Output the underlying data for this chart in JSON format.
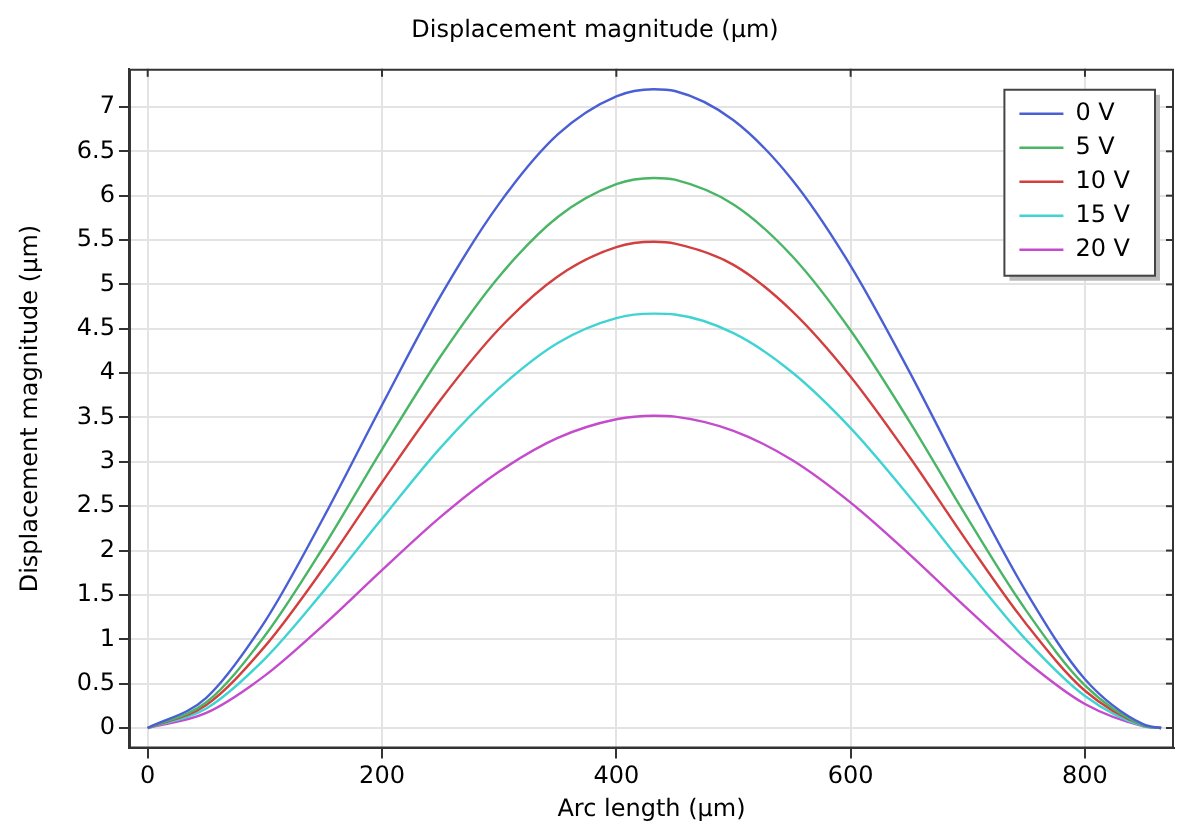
{
  "chart_data": {
    "type": "line",
    "title": "Displacement magnitude (µm)",
    "xlabel": "Arc length (µm)",
    "ylabel": "Displacement magnitude (µm)",
    "x": [
      0,
      50,
      100,
      150,
      200,
      250,
      300,
      350,
      400,
      432,
      450,
      500,
      550,
      600,
      650,
      700,
      750,
      800,
      850,
      865
    ],
    "xlim": [
      -16,
      876
    ],
    "xticks": [
      0,
      200,
      400,
      600,
      800
    ],
    "ylim": [
      -0.23,
      7.43
    ],
    "yticks": [
      0,
      0.5,
      1,
      1.5,
      2,
      2.5,
      3,
      3.5,
      4,
      4.5,
      5,
      5.5,
      6,
      6.5,
      7
    ],
    "grid": true,
    "legend": "top right",
    "marker": "none",
    "line_style": "solid",
    "series": [
      {
        "name": "0 V",
        "color": "#4a5fd4",
        "values": [
          0,
          0.34,
          1.2,
          2.37,
          3.64,
          4.87,
          5.91,
          6.69,
          7.12,
          7.2,
          7.18,
          6.85,
          6.18,
          5.21,
          4.02,
          2.74,
          1.53,
          0.55,
          0.04,
          0
        ]
      },
      {
        "name": "5 V",
        "color": "#49b565",
        "values": [
          0,
          0.29,
          1.04,
          2.04,
          3.14,
          4.19,
          5.09,
          5.76,
          6.13,
          6.2,
          6.18,
          5.9,
          5.32,
          4.48,
          3.46,
          2.36,
          1.32,
          0.48,
          0.03,
          0
        ]
      },
      {
        "name": "10 V",
        "color": "#d23f3f",
        "values": [
          0,
          0.26,
          0.92,
          1.8,
          2.77,
          3.7,
          4.5,
          5.09,
          5.42,
          5.48,
          5.46,
          5.22,
          4.7,
          3.96,
          3.06,
          2.09,
          1.17,
          0.42,
          0.03,
          0
        ]
      },
      {
        "name": "15 V",
        "color": "#3fd3d3",
        "values": [
          0,
          0.22,
          0.78,
          1.54,
          2.36,
          3.16,
          3.83,
          4.34,
          4.62,
          4.67,
          4.66,
          4.45,
          4.01,
          3.38,
          2.61,
          1.78,
          0.99,
          0.36,
          0.02,
          0
        ]
      },
      {
        "name": "20 V",
        "color": "#c44bcc",
        "values": [
          0,
          0.17,
          0.59,
          1.16,
          1.78,
          2.38,
          2.89,
          3.27,
          3.48,
          3.52,
          3.51,
          3.35,
          3.02,
          2.54,
          1.96,
          1.34,
          0.75,
          0.27,
          0.02,
          0
        ]
      }
    ]
  }
}
